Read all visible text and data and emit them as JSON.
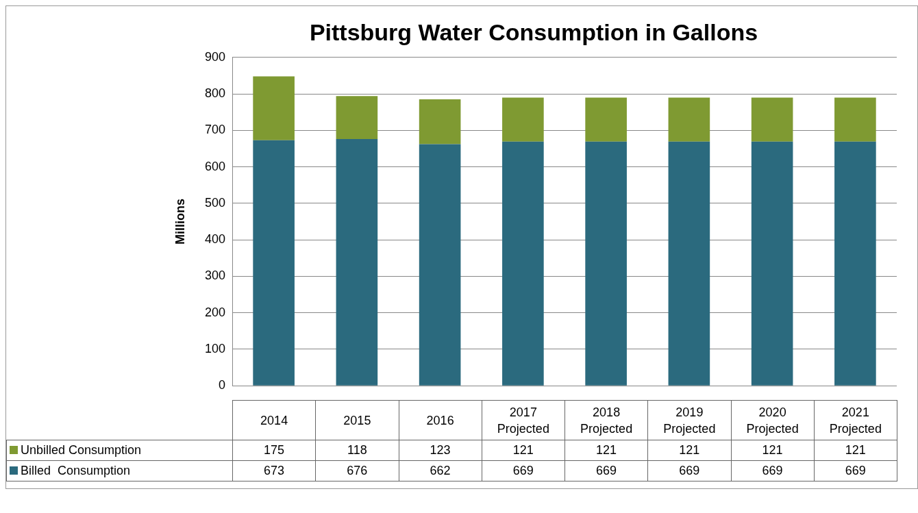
{
  "chart_data": {
    "type": "bar",
    "title": "Pittsburg Water Consumption in Gallons",
    "ylabel": "Millions",
    "categories": [
      "2014",
      "2015",
      "2016",
      "2017 Projected",
      "2018 Projected",
      "2019 Projected",
      "2020 Projected",
      "2021 Projected"
    ],
    "series": [
      {
        "name": "Billed  Consumption",
        "color": "#2b6a7e",
        "values": [
          673,
          676,
          662,
          669,
          669,
          669,
          669,
          669
        ]
      },
      {
        "name": "Unbilled Consumption",
        "color": "#7f9a32",
        "values": [
          175,
          118,
          123,
          121,
          121,
          121,
          121,
          121
        ]
      }
    ],
    "stacked": true,
    "ylim": [
      0,
      900
    ],
    "yticks": [
      0,
      100,
      200,
      300,
      400,
      500,
      600,
      700,
      800,
      900
    ],
    "grid": "y",
    "legend": "bottom",
    "data_labels": true
  }
}
